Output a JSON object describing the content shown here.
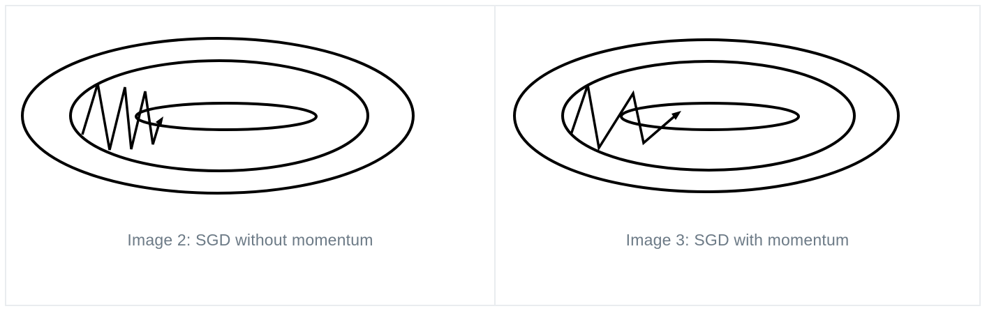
{
  "figures": [
    {
      "caption": "Image 2: SGD without momentum",
      "path_style": "zigzag-oscillating",
      "contour_rings": 3
    },
    {
      "caption": "Image 3: SGD with momentum",
      "path_style": "damped-zigzag",
      "contour_rings": 3
    }
  ],
  "colors": {
    "stroke": "#000000",
    "caption_text": "#6c7a86",
    "border": "#e9ecef",
    "background": "#ffffff"
  }
}
